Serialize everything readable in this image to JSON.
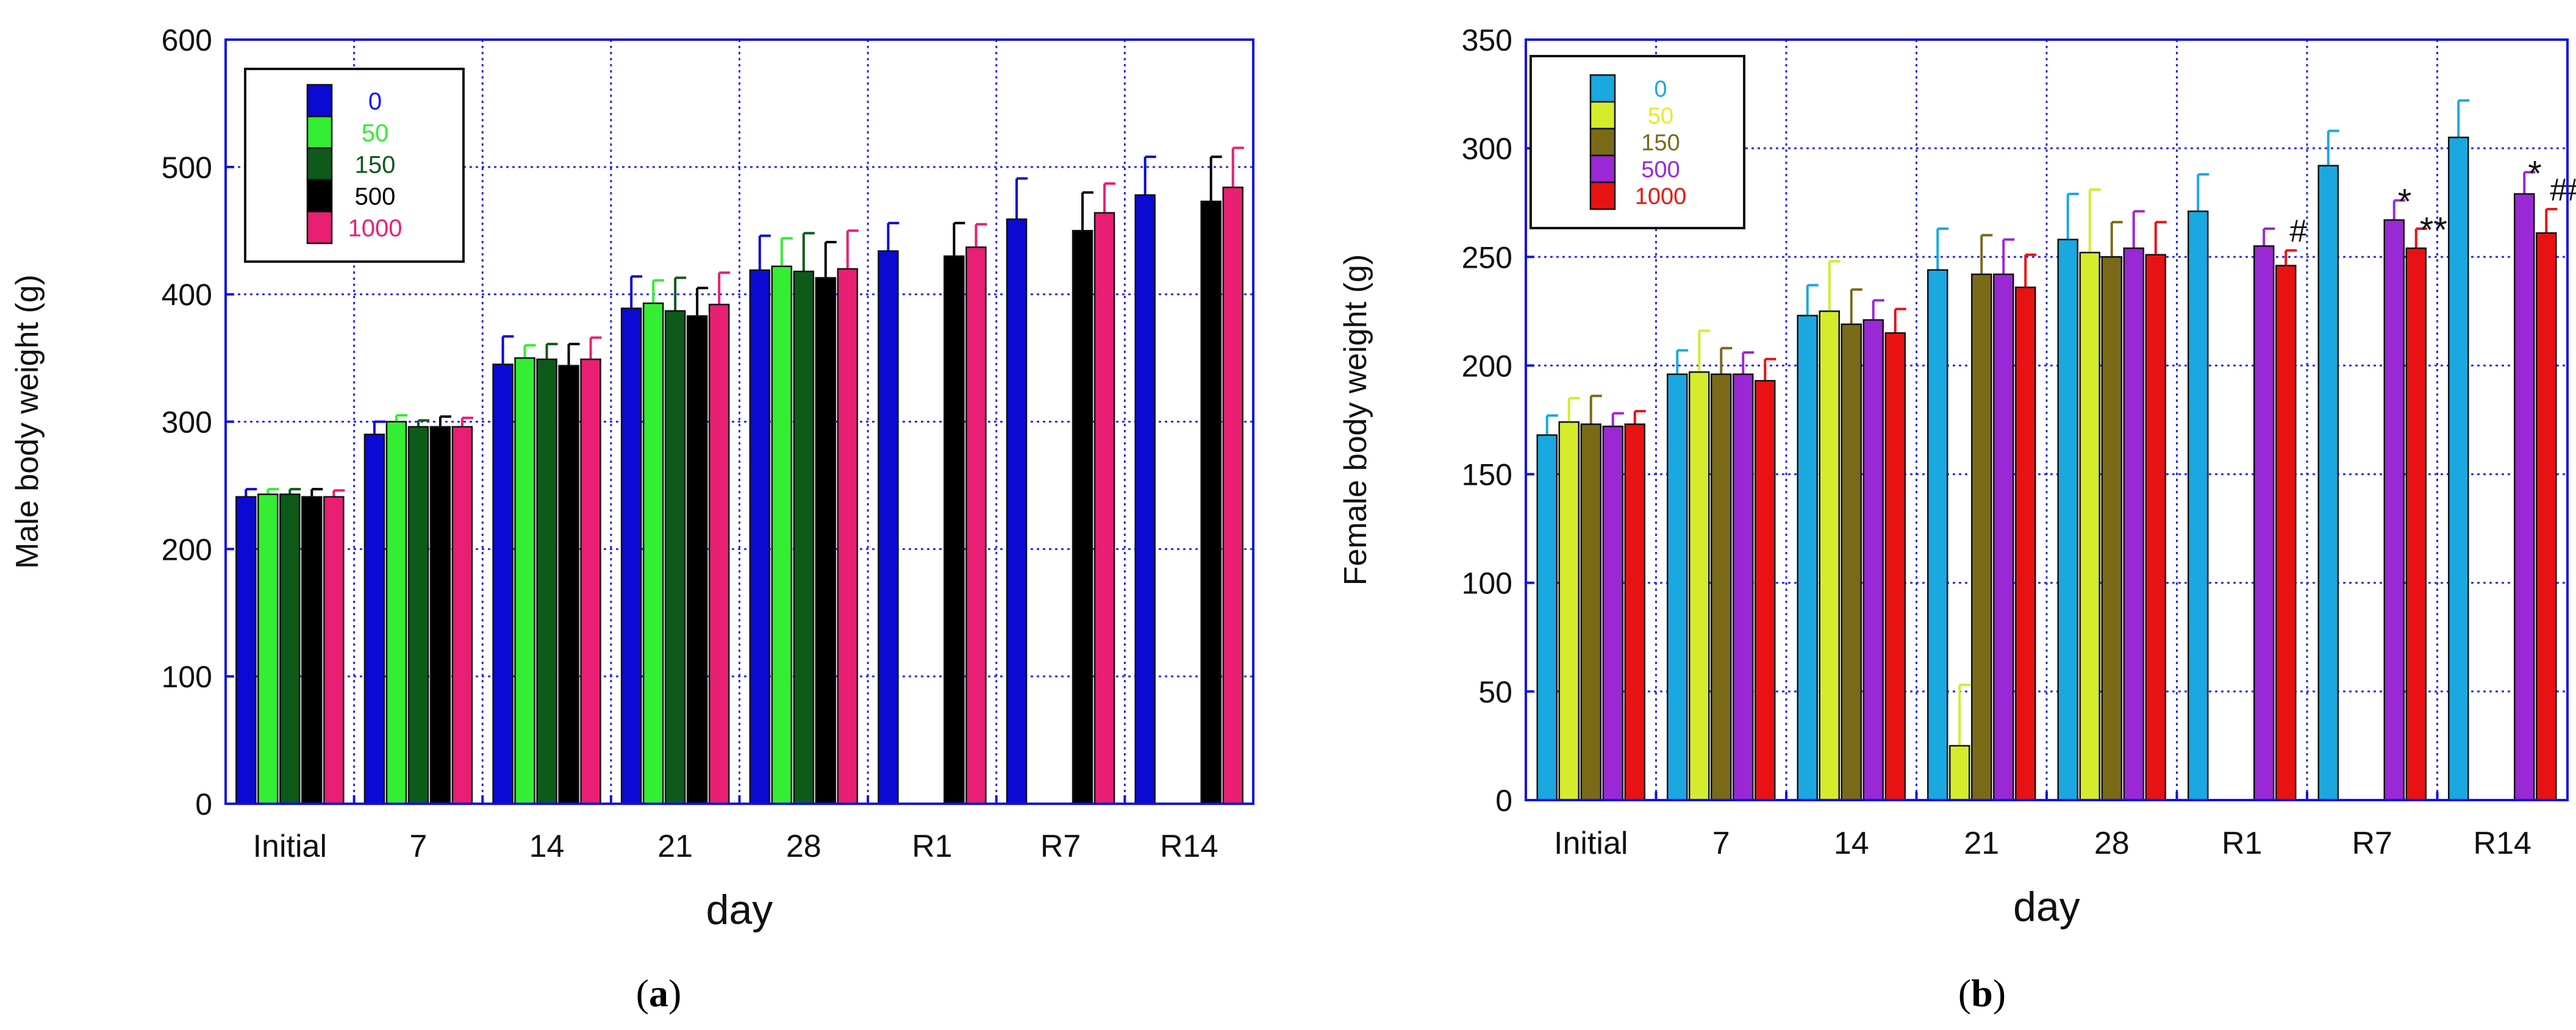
{
  "chart_data": [
    {
      "type": "bar",
      "panel_label": "a",
      "caption_prefix": "(",
      "caption_suffix": ")",
      "xlabel": "day",
      "ylabel": "Male body weight (g)",
      "ylim": [
        0,
        600
      ],
      "yticks": [
        0,
        100,
        200,
        300,
        400,
        500,
        600
      ],
      "grid": true,
      "legend_position": "top-left",
      "categories": [
        "Initial",
        "7",
        "14",
        "21",
        "28",
        "R1",
        "R7",
        "R14"
      ],
      "series": [
        {
          "name": "0",
          "color": "#0a0ad2",
          "label_color": "#1010ff",
          "values": [
            241,
            290,
            345,
            389,
            419,
            434,
            459,
            478
          ],
          "errors": [
            6,
            10,
            22,
            25,
            27,
            22,
            32,
            30
          ]
        },
        {
          "name": "50",
          "color": "#33ee33",
          "label_color": "#33ee33",
          "values": [
            243,
            300,
            350,
            393,
            422,
            null,
            null,
            null
          ],
          "errors": [
            4,
            5,
            10,
            18,
            22,
            null,
            null,
            null
          ]
        },
        {
          "name": "150",
          "color": "#0d5a1a",
          "label_color": "#0d5a1a",
          "values": [
            243,
            296,
            349,
            387,
            418,
            null,
            null,
            null
          ],
          "errors": [
            4,
            5,
            12,
            26,
            30,
            null,
            null,
            null
          ]
        },
        {
          "name": "500",
          "color": "#000000",
          "label_color": "#000000",
          "values": [
            241,
            296,
            344,
            383,
            413,
            430,
            450,
            473
          ],
          "errors": [
            6,
            8,
            17,
            22,
            28,
            26,
            30,
            35
          ]
        },
        {
          "name": "1000",
          "color": "#e81f72",
          "label_color": "#e81f72",
          "values": [
            241,
            296,
            349,
            392,
            420,
            437,
            464,
            484
          ],
          "errors": [
            5,
            7,
            17,
            25,
            30,
            18,
            23,
            31
          ]
        }
      ],
      "annotations": []
    },
    {
      "type": "bar",
      "panel_label": "b",
      "caption_prefix": "(",
      "caption_suffix": ")",
      "xlabel": "day",
      "ylabel": "Female body weight (g)",
      "ylim": [
        0,
        350
      ],
      "yticks": [
        0,
        50,
        100,
        150,
        200,
        250,
        300,
        350
      ],
      "grid": true,
      "legend_position": "top-left",
      "categories": [
        "Initial",
        "7",
        "14",
        "21",
        "28",
        "R1",
        "R7",
        "R14"
      ],
      "series": [
        {
          "name": "0",
          "color": "#19a8e0",
          "label_color": "#19a8e0",
          "values": [
            168,
            196,
            223,
            244,
            258,
            271,
            292,
            305
          ],
          "errors": [
            9,
            11,
            14,
            19,
            21,
            17,
            16,
            17
          ]
        },
        {
          "name": "50",
          "color": "#d4ec2c",
          "label_color": "#e8e830",
          "values": [
            174,
            197,
            225,
            25,
            252,
            null,
            null,
            null
          ],
          "errors": [
            11,
            19,
            23,
            28,
            29,
            null,
            null,
            null
          ]
        },
        {
          "name": "150",
          "color": "#7a6a18",
          "label_color": "#7a6a18",
          "values": [
            173,
            196,
            219,
            242,
            250,
            null,
            null,
            null
          ],
          "errors": [
            13,
            12,
            16,
            18,
            16,
            null,
            null,
            null
          ]
        },
        {
          "name": "500",
          "color": "#9a28d4",
          "label_color": "#9a28d4",
          "values": [
            172,
            196,
            221,
            242,
            254,
            255,
            267,
            279
          ],
          "errors": [
            6,
            10,
            9,
            16,
            17,
            8,
            9,
            10
          ]
        },
        {
          "name": "1000",
          "color": "#e81212",
          "label_color": "#e81212",
          "values": [
            173,
            193,
            215,
            236,
            251,
            246,
            254,
            261
          ],
          "errors": [
            6,
            10,
            11,
            15,
            15,
            7,
            9,
            11
          ]
        }
      ],
      "annotations": [
        {
          "text": "#",
          "category": "R1",
          "series": "1000"
        },
        {
          "text": "*",
          "category": "R7",
          "series": "500"
        },
        {
          "text": "**",
          "category": "R7",
          "series": "1000"
        },
        {
          "text": "*",
          "category": "R14",
          "series": "500"
        },
        {
          "text": "##",
          "category": "R14",
          "series": "1000"
        }
      ]
    }
  ]
}
